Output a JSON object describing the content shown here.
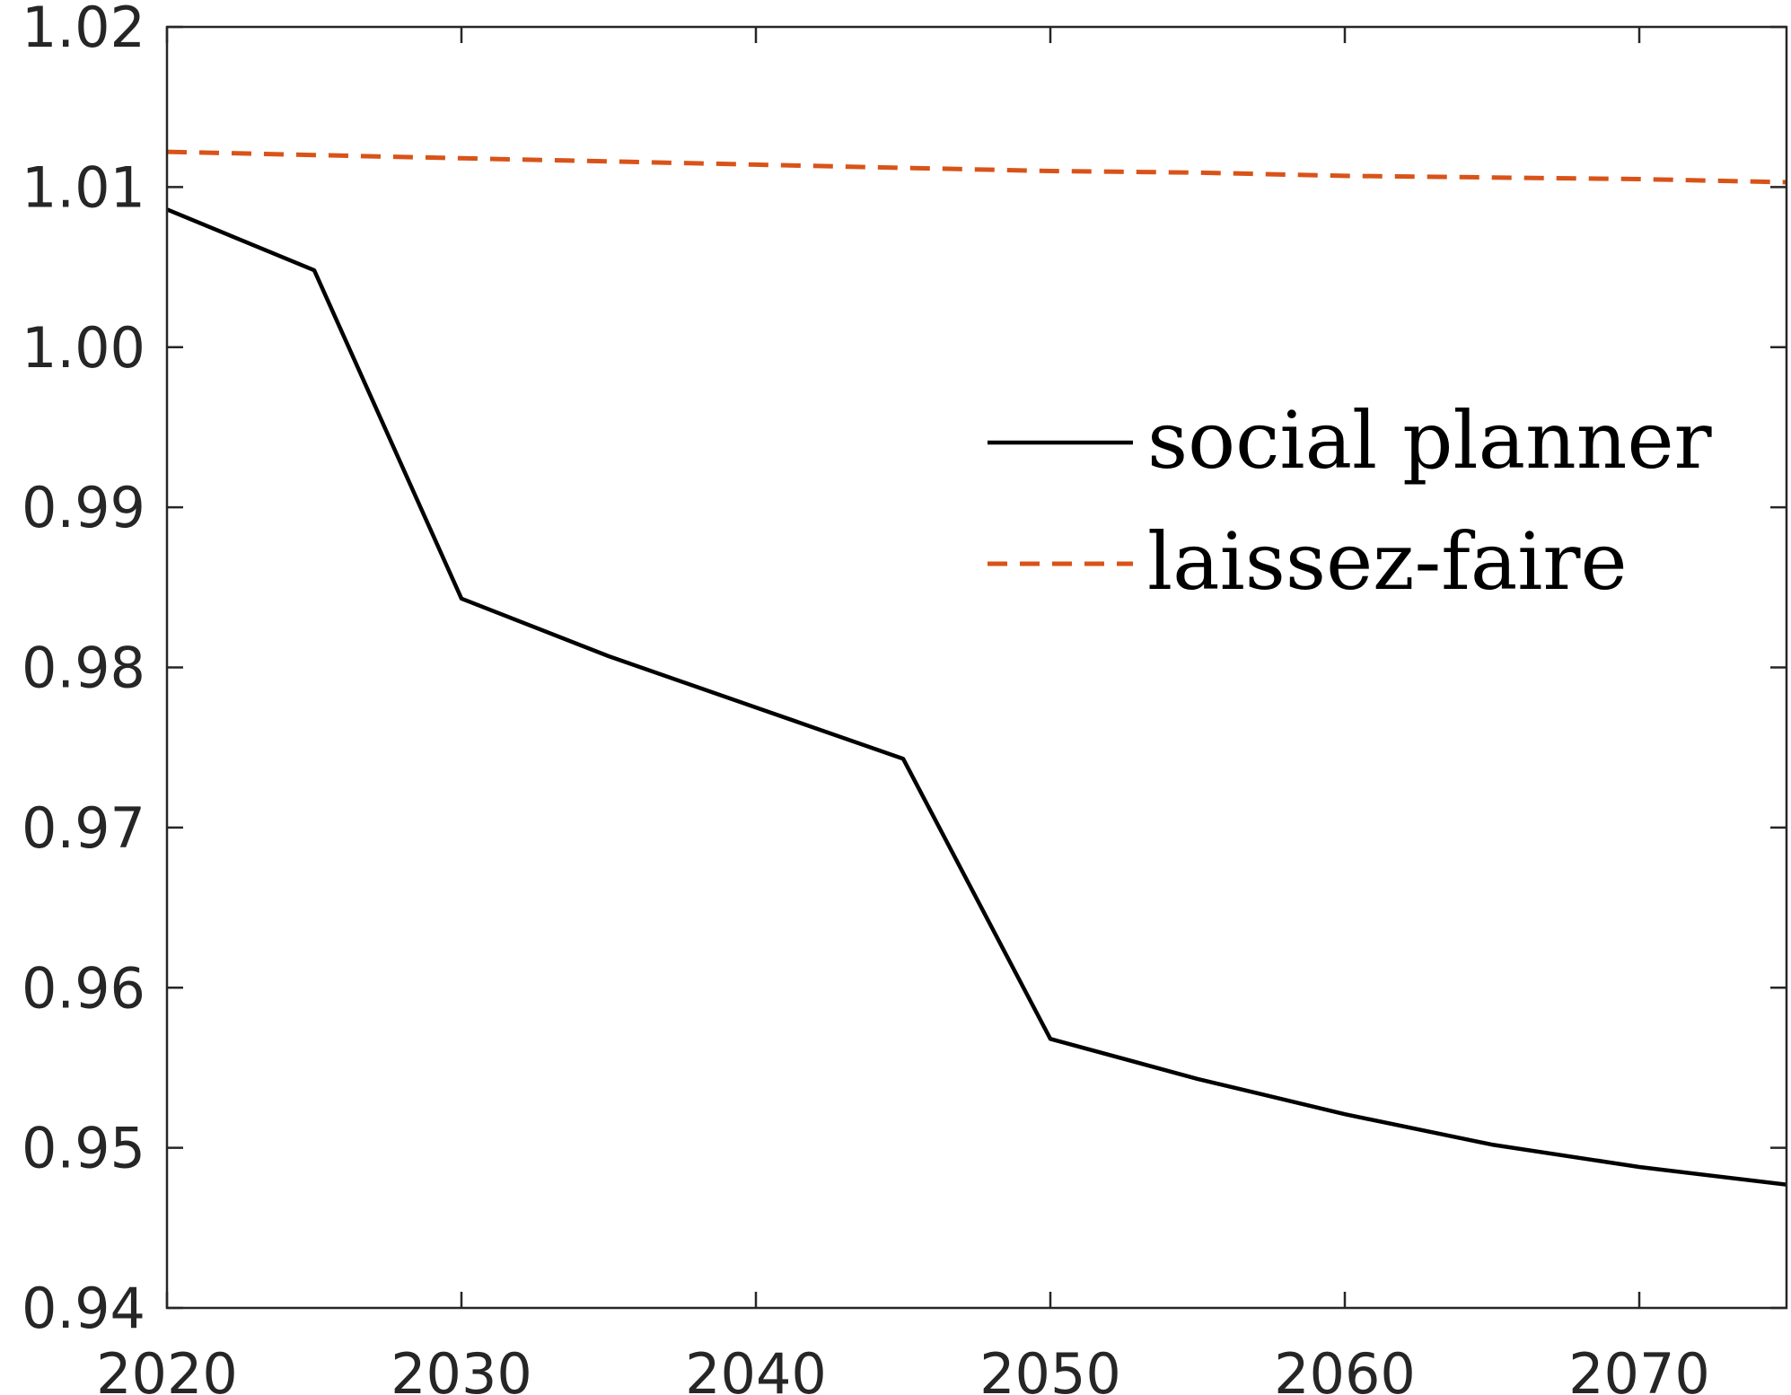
{
  "chart_data": {
    "type": "line",
    "title": "",
    "xlabel": "",
    "ylabel": "",
    "xlim": [
      2020,
      2075
    ],
    "ylim": [
      0.94,
      1.02
    ],
    "x_ticks": [
      2020,
      2030,
      2040,
      2050,
      2060,
      2070
    ],
    "x_tick_labels": [
      "2020",
      "2030",
      "2040",
      "2050",
      "2060",
      "2070"
    ],
    "y_ticks": [
      0.94,
      0.95,
      0.96,
      0.97,
      0.98,
      0.99,
      1.0,
      1.01,
      1.02
    ],
    "y_tick_labels": [
      "0.94",
      "0.95",
      "0.96",
      "0.97",
      "0.98",
      "0.99",
      "1.00",
      "1.01",
      "1.02"
    ],
    "grid": false,
    "legend_position": "right",
    "x": [
      2020,
      2025,
      2030,
      2035,
      2040,
      2045,
      2050,
      2055,
      2060,
      2065,
      2070,
      2075
    ],
    "series": [
      {
        "name": "social planner",
        "color": "#000000",
        "line_style": "solid",
        "values": [
          1.0086,
          1.0048,
          0.9843,
          0.9807,
          0.9775,
          0.9743,
          0.9568,
          0.9543,
          0.9521,
          0.9502,
          0.9488,
          0.9477
        ]
      },
      {
        "name": "laissez-faire",
        "color": "#D95319",
        "line_style": "dashed",
        "values": [
          1.0122,
          1.012,
          1.0118,
          1.0116,
          1.0114,
          1.0112,
          1.011,
          1.0109,
          1.0107,
          1.0106,
          1.0105,
          1.0103
        ]
      }
    ]
  }
}
